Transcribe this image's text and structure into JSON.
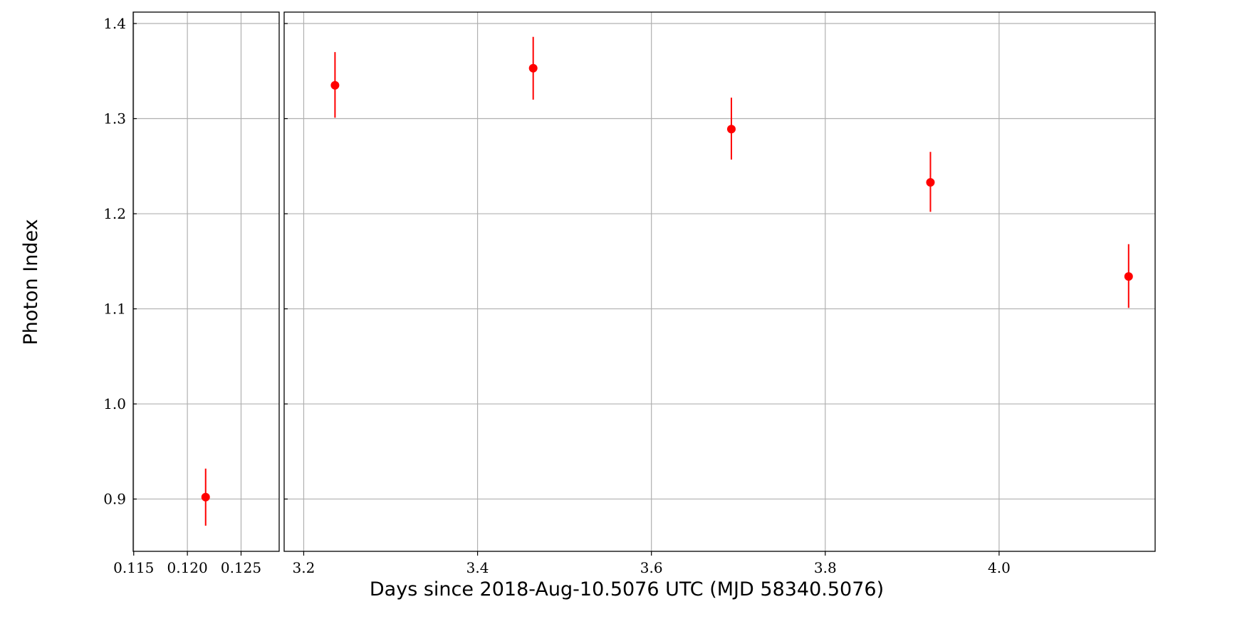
{
  "chart_data": {
    "type": "scatter",
    "xlabel": "Days since 2018-Aug-10.5076 UTC (MJD 58340.5076)",
    "ylabel": "Photon Index",
    "ylim": [
      0.845,
      1.412
    ],
    "y_ticks": [
      "0.9",
      "1.0",
      "1.1",
      "1.2",
      "1.3",
      "1.4"
    ],
    "grid": true,
    "marker_color": "#ff0000",
    "panels": [
      {
        "xlim": [
          0.11495,
          0.12855
        ],
        "x_ticks": [
          "0.115",
          "0.120",
          "0.125"
        ],
        "points": [
          {
            "x": 0.1217,
            "y": 0.902,
            "err_low": 0.03,
            "err_high": 0.03
          }
        ]
      },
      {
        "xlim": [
          3.1775,
          4.1795
        ],
        "x_ticks": [
          "3.2",
          "3.4",
          "3.6",
          "3.8",
          "4.0"
        ],
        "points": [
          {
            "x": 3.236,
            "y": 1.335,
            "err_low": 0.034,
            "err_high": 0.035
          },
          {
            "x": 3.464,
            "y": 1.353,
            "err_low": 0.033,
            "err_high": 0.033
          },
          {
            "x": 3.692,
            "y": 1.289,
            "err_low": 0.032,
            "err_high": 0.033
          },
          {
            "x": 3.921,
            "y": 1.233,
            "err_low": 0.031,
            "err_high": 0.032
          },
          {
            "x": 4.149,
            "y": 1.134,
            "err_low": 0.033,
            "err_high": 0.034
          }
        ]
      }
    ]
  }
}
